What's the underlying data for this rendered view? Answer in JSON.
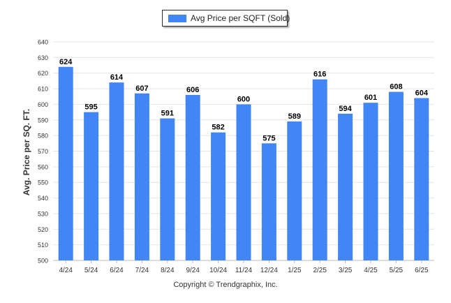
{
  "legend": {
    "label": "Avg Price per SQFT (Sold)"
  },
  "copyright": "Copyright © Trendgraphix, Inc.",
  "colors": {
    "bar": "#4285f4",
    "grid": "#e4e4e4",
    "axis": "#666666",
    "text": "#333333"
  },
  "chart_data": {
    "type": "bar",
    "title": "",
    "xlabel": "",
    "ylabel": "Avg. Price per SQ. FT.",
    "ylim": [
      500,
      640
    ],
    "yticks": [
      500,
      510,
      520,
      530,
      540,
      550,
      560,
      570,
      580,
      590,
      600,
      610,
      620,
      630,
      640
    ],
    "grid": true,
    "legend_position": "top-center",
    "categories": [
      "4/24",
      "5/24",
      "6/24",
      "7/24",
      "8/24",
      "9/24",
      "10/24",
      "11/24",
      "12/24",
      "1/25",
      "2/25",
      "3/25",
      "4/25",
      "5/25",
      "6/25"
    ],
    "series": [
      {
        "name": "Avg Price per SQFT (Sold)",
        "values": [
          624,
          595,
          614,
          607,
          591,
          606,
          582,
          600,
          575,
          589,
          616,
          594,
          601,
          608,
          604
        ]
      }
    ]
  }
}
